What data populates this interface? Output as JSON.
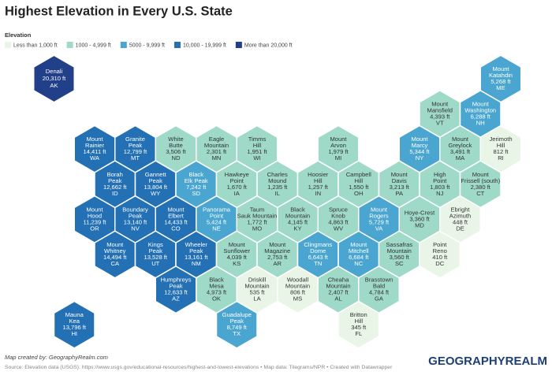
{
  "title": "Highest Elevation in Every U.S. State",
  "legend": {
    "title": "Elevation",
    "items": [
      {
        "label": "Less than 1,000 ft",
        "color": "#e9f5e7"
      },
      {
        "label": "1000 - 4,999 ft",
        "color": "#9fd9c7"
      },
      {
        "label": "5000 - 9,999 ft",
        "color": "#4aa6d0"
      },
      {
        "label": "10,000 - 19,999 ft",
        "color": "#2370b5"
      },
      {
        "label": "More than 20,000 ft",
        "color": "#22408a"
      }
    ]
  },
  "hexes": [
    {
      "name": [
        "Denali"
      ],
      "elevation": "20,310 ft",
      "state": "AK",
      "color": "#22408a"
    },
    {
      "name": [
        "Mount",
        "Katahdin"
      ],
      "elevation": "5,268 ft",
      "state": "ME",
      "color": "#4aa6d0"
    },
    {
      "name": [
        "Mount",
        "Mansfield"
      ],
      "elevation": "4,393 ft",
      "state": "VT",
      "color": "#9fd9c7"
    },
    {
      "name": [
        "Mount",
        "Washington"
      ],
      "elevation": "6,288 ft",
      "state": "NH",
      "color": "#4aa6d0"
    },
    {
      "name": [
        "Mount",
        "Rainier"
      ],
      "elevation": "14,411 ft",
      "state": "WA",
      "color": "#2370b5"
    },
    {
      "name": [
        "Granite",
        "Peak"
      ],
      "elevation": "12,799 ft",
      "state": "MT",
      "color": "#2370b5"
    },
    {
      "name": [
        "White",
        "Butte"
      ],
      "elevation": "3,506 ft",
      "state": "ND",
      "color": "#9fd9c7"
    },
    {
      "name": [
        "Eagle",
        "Mountain"
      ],
      "elevation": "2,301 ft",
      "state": "MN",
      "color": "#9fd9c7"
    },
    {
      "name": [
        "Timms",
        "Hill"
      ],
      "elevation": "1,951 ft",
      "state": "WI",
      "color": "#9fd9c7"
    },
    {
      "name": [
        "Mount",
        "Arvon"
      ],
      "elevation": "1,979 ft",
      "state": "MI",
      "color": "#9fd9c7"
    },
    {
      "name": [
        "Mount",
        "Marcy"
      ],
      "elevation": "5,344 ft",
      "state": "NY",
      "color": "#4aa6d0"
    },
    {
      "name": [
        "Mount",
        "Greylock"
      ],
      "elevation": "3,491 ft",
      "state": "MA",
      "color": "#9fd9c7"
    },
    {
      "name": [
        "Jerimoth",
        "Hill"
      ],
      "elevation": "812 ft",
      "state": "RI",
      "color": "#e9f5e7"
    },
    {
      "name": [
        "Borah",
        "Peak"
      ],
      "elevation": "12,662 ft",
      "state": "ID",
      "color": "#2370b5"
    },
    {
      "name": [
        "Gannett",
        "Peak"
      ],
      "elevation": "13,804 ft",
      "state": "WY",
      "color": "#2370b5"
    },
    {
      "name": [
        "Black",
        "Elk Peak"
      ],
      "elevation": "7,242 ft",
      "state": "SD",
      "color": "#4aa6d0"
    },
    {
      "name": [
        "Hawkeye",
        "Point"
      ],
      "elevation": "1,670 ft",
      "state": "IA",
      "color": "#9fd9c7"
    },
    {
      "name": [
        "Charles",
        "Mound"
      ],
      "elevation": "1,235 ft",
      "state": "IL",
      "color": "#9fd9c7"
    },
    {
      "name": [
        "Hoosier",
        "Hill"
      ],
      "elevation": "1,257 ft",
      "state": "IN",
      "color": "#9fd9c7"
    },
    {
      "name": [
        "Campbell",
        "Hill"
      ],
      "elevation": "1,550 ft",
      "state": "OH",
      "color": "#9fd9c7"
    },
    {
      "name": [
        "Mount",
        "Davis"
      ],
      "elevation": "3,213 ft",
      "state": "PA",
      "color": "#9fd9c7"
    },
    {
      "name": [
        "High",
        "Point"
      ],
      "elevation": "1,803 ft",
      "state": "NJ",
      "color": "#9fd9c7"
    },
    {
      "name": [
        "Mount",
        "Frissell (south)"
      ],
      "elevation": "2,380 ft",
      "state": "CT",
      "color": "#9fd9c7"
    },
    {
      "name": [
        "Mount",
        "Hood"
      ],
      "elevation": "11,239 ft",
      "state": "OR",
      "color": "#2370b5"
    },
    {
      "name": [
        "Boundary",
        "Peak"
      ],
      "elevation": "13,140 ft",
      "state": "NV",
      "color": "#2370b5"
    },
    {
      "name": [
        "Mount",
        "Elbert"
      ],
      "elevation": "14,433 ft",
      "state": "CO",
      "color": "#2370b5"
    },
    {
      "name": [
        "Panorama",
        "Point"
      ],
      "elevation": "5,424 ft",
      "state": "NE",
      "color": "#4aa6d0"
    },
    {
      "name": [
        "Taum",
        "Sauk Mountain"
      ],
      "elevation": "1,772 ft",
      "state": "MO",
      "color": "#9fd9c7"
    },
    {
      "name": [
        "Black",
        "Mountain"
      ],
      "elevation": "4,145 ft",
      "state": "KY",
      "color": "#9fd9c7"
    },
    {
      "name": [
        "Spruce",
        "Knob"
      ],
      "elevation": "4,863 ft",
      "state": "WV",
      "color": "#9fd9c7"
    },
    {
      "name": [
        "Mount",
        "Rogers"
      ],
      "elevation": "5,729 ft",
      "state": "VA",
      "color": "#4aa6d0"
    },
    {
      "name": [
        "Hoye-Crest"
      ],
      "elevation": "3,360 ft",
      "state": "MD",
      "color": "#9fd9c7"
    },
    {
      "name": [
        "Ebright",
        "Azimuth"
      ],
      "elevation": "448 ft",
      "state": "DE",
      "color": "#e9f5e7"
    },
    {
      "name": [
        "Mount",
        "Whitney"
      ],
      "elevation": "14,494 ft",
      "state": "CA",
      "color": "#2370b5"
    },
    {
      "name": [
        "Kings",
        "Peak"
      ],
      "elevation": "13,528 ft",
      "state": "UT",
      "color": "#2370b5"
    },
    {
      "name": [
        "Wheeler",
        "Peak"
      ],
      "elevation": "13,161 ft",
      "state": "NM",
      "color": "#2370b5"
    },
    {
      "name": [
        "Mount",
        "Sunflower"
      ],
      "elevation": "4,039 ft",
      "state": "KS",
      "color": "#9fd9c7"
    },
    {
      "name": [
        "Mount",
        "Magazine"
      ],
      "elevation": "2,753 ft",
      "state": "AR",
      "color": "#9fd9c7"
    },
    {
      "name": [
        "Clingmans",
        "Dome"
      ],
      "elevation": "6,643 ft",
      "state": "TN",
      "color": "#4aa6d0"
    },
    {
      "name": [
        "Mount",
        "Mitchell"
      ],
      "elevation": "6,684 ft",
      "state": "NC",
      "color": "#4aa6d0"
    },
    {
      "name": [
        "Sassafras",
        "Mountain"
      ],
      "elevation": "3,560 ft",
      "state": "SC",
      "color": "#9fd9c7"
    },
    {
      "name": [
        "Point",
        "Reno"
      ],
      "elevation": "410 ft",
      "state": "DC",
      "color": "#e9f5e7"
    },
    {
      "name": [
        "Humphreys",
        "Peak"
      ],
      "elevation": "12,633 ft",
      "state": "AZ",
      "color": "#2370b5"
    },
    {
      "name": [
        "Black",
        "Mesa"
      ],
      "elevation": "4,973 ft",
      "state": "OK",
      "color": "#9fd9c7"
    },
    {
      "name": [
        "Driskill",
        "Mountain"
      ],
      "elevation": "535 ft",
      "state": "LA",
      "color": "#e9f5e7"
    },
    {
      "name": [
        "Woodall",
        "Mountain"
      ],
      "elevation": "806 ft",
      "state": "MS",
      "color": "#e9f5e7"
    },
    {
      "name": [
        "Cheaha",
        "Mountain"
      ],
      "elevation": "2,407 ft",
      "state": "AL",
      "color": "#9fd9c7"
    },
    {
      "name": [
        "Brasstown",
        "Bald"
      ],
      "elevation": "4,784 ft",
      "state": "GA",
      "color": "#9fd9c7"
    },
    {
      "name": [
        "Mauna",
        "Kea"
      ],
      "elevation": "13,796 ft",
      "state": "HI",
      "color": "#2370b5"
    },
    {
      "name": [
        "Guadalupe",
        "Peak"
      ],
      "elevation": "8,749 ft",
      "state": "TX",
      "color": "#4aa6d0"
    },
    {
      "name": [
        "Britton",
        "Hill"
      ],
      "elevation": "345 ft",
      "state": "FL",
      "color": "#e9f5e7"
    }
  ],
  "footer": {
    "credit": "Map created by: GeographyRealm.com",
    "source": "Source: Elevation data (USGS): https://www.usgs.gov/educational-resources/highest-and-lowest-elevations • Map data: Tilegrams/NPR • Created with Datawrapper",
    "logo": "GEOGRAPHYREALM"
  }
}
